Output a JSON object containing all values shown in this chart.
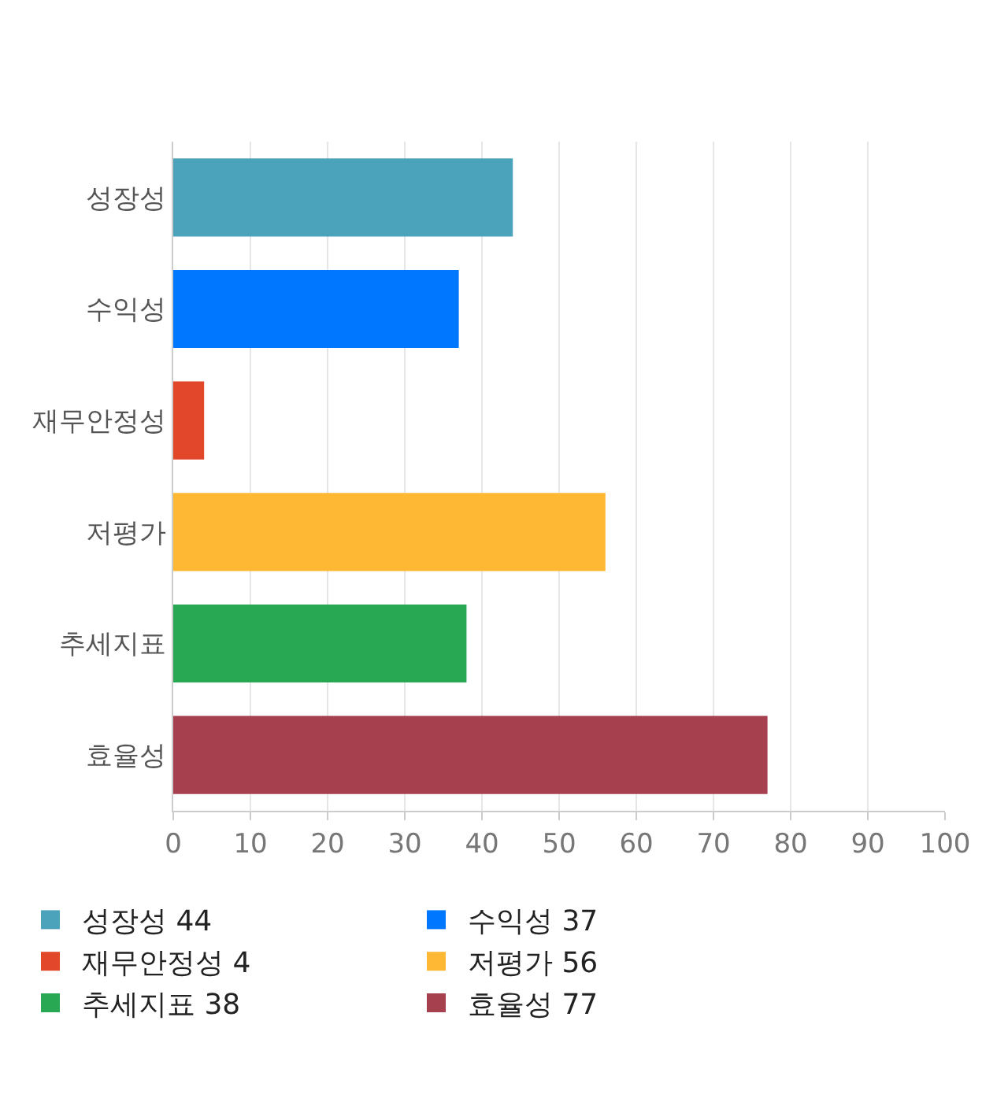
{
  "chart_data": {
    "type": "bar",
    "orientation": "horizontal",
    "categories": [
      "성장성",
      "수익성",
      "재무안정성",
      "저평가",
      "추세지표",
      "효율성"
    ],
    "series": [
      {
        "name": "성장성 44",
        "color": "#4ba2bb",
        "values": [
          44,
          null,
          null,
          null,
          null,
          null
        ]
      },
      {
        "name": "수익성 37",
        "color": "#0077ff",
        "values": [
          null,
          37,
          null,
          null,
          null,
          null
        ]
      },
      {
        "name": "재무안정성 4",
        "color": "#e3472a",
        "values": [
          null,
          null,
          4,
          null,
          null,
          null
        ]
      },
      {
        "name": "저평가 56",
        "color": "#ffb833",
        "values": [
          null,
          null,
          null,
          56,
          null,
          null
        ]
      },
      {
        "name": "추세지표 38",
        "color": "#29a853",
        "values": [
          null,
          null,
          null,
          null,
          38,
          null
        ]
      },
      {
        "name": "효율성 77",
        "color": "#a6404f",
        "values": [
          null,
          null,
          null,
          null,
          null,
          77
        ]
      }
    ],
    "xlim": [
      0,
      100
    ],
    "xticks": [
      0,
      10,
      20,
      30,
      40,
      50,
      60,
      70,
      80,
      90,
      100
    ],
    "grid": "x",
    "legend": "bottom"
  }
}
